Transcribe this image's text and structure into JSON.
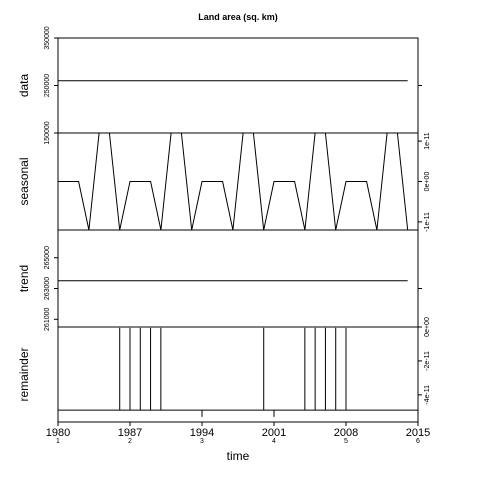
{
  "chart_data": {
    "type": "line",
    "title": "Land area (sq. km)",
    "xlabel": "time",
    "x_range": [
      1980,
      2015
    ],
    "x_major_ticks": [
      "1980",
      "1987",
      "1994",
      "2001",
      "2008",
      "2015"
    ],
    "x_minor_labels": [
      "1",
      "2",
      "3",
      "4",
      "5",
      "6"
    ],
    "panels": [
      {
        "name": "data",
        "ylim": [
          150000,
          350000
        ],
        "left_ticks": [
          {
            "v": 150000,
            "t": "150000"
          },
          {
            "v": 250000,
            "t": "250000"
          },
          {
            "v": 350000,
            "t": "350000"
          }
        ],
        "right_ticks": [
          {
            "v": 250000,
            "t": ""
          }
        ],
        "style": "line",
        "x": [
          1980,
          2014
        ],
        "y": [
          260000,
          260000
        ]
      },
      {
        "name": "seasonal",
        "ylim": [
          -1.2e-11,
          1.2e-11
        ],
        "left_ticks": [],
        "right_ticks": [
          {
            "v": 1e-11,
            "t": "1e-11"
          },
          {
            "v": 0,
            "t": "0e+00"
          },
          {
            "v": -1e-11,
            "t": "-1e-11"
          }
        ],
        "style": "line",
        "x": [
          1980,
          1982,
          1983,
          1984,
          1985,
          1986,
          1987,
          1989,
          1990,
          1991,
          1992,
          1993,
          1994,
          1996,
          1997,
          1998,
          1999,
          2000,
          2001,
          2003,
          2004,
          2005,
          2006,
          2007,
          2008,
          2010,
          2011,
          2012,
          2013,
          2014
        ],
        "y": [
          0,
          0,
          -1.2e-11,
          1.2e-11,
          1.2e-11,
          -1.2e-11,
          0,
          0,
          -1.2e-11,
          1.2e-11,
          1.2e-11,
          -1.2e-11,
          0,
          0,
          -1.2e-11,
          1.2e-11,
          1.2e-11,
          -1.2e-11,
          0,
          0,
          -1.2e-11,
          1.2e-11,
          1.2e-11,
          -1.2e-11,
          0,
          0,
          -1.2e-11,
          1.2e-11,
          1.2e-11,
          -1.2e-11
        ]
      },
      {
        "name": "trend",
        "ylim": [
          260500,
          266800
        ],
        "left_ticks": [
          {
            "v": 261000,
            "t": "261000"
          },
          {
            "v": 263000,
            "t": "263000"
          },
          {
            "v": 265000,
            "t": "265000"
          }
        ],
        "right_ticks": [
          {
            "v": 263000,
            "t": ""
          }
        ],
        "style": "line",
        "x": [
          1980,
          2014
        ],
        "y": [
          263500,
          263500
        ]
      },
      {
        "name": "remainder",
        "ylim": [
          -5.6e-11,
          0
        ],
        "left_ticks": [],
        "right_ticks": [
          {
            "v": 0,
            "t": "0e+00"
          },
          {
            "v": -2e-11,
            "t": "-2e-11"
          },
          {
            "v": -4e-11,
            "t": "-4e-11"
          }
        ],
        "style": "bars",
        "baseline": -4.9e-11,
        "x": [
          1980,
          1986,
          1987,
          1988,
          1989,
          1990,
          1994,
          2000,
          2001,
          2004,
          2005,
          2006,
          2007,
          2008,
          2015
        ],
        "y": [
          -5.5e-11,
          -5e-13,
          -5e-13,
          -5e-13,
          -5e-13,
          -5e-13,
          -5.3e-11,
          -5e-13,
          -5.3e-11,
          -5e-13,
          -5e-13,
          -5e-13,
          -5e-13,
          -5e-13,
          -5.5e-11
        ]
      }
    ]
  }
}
